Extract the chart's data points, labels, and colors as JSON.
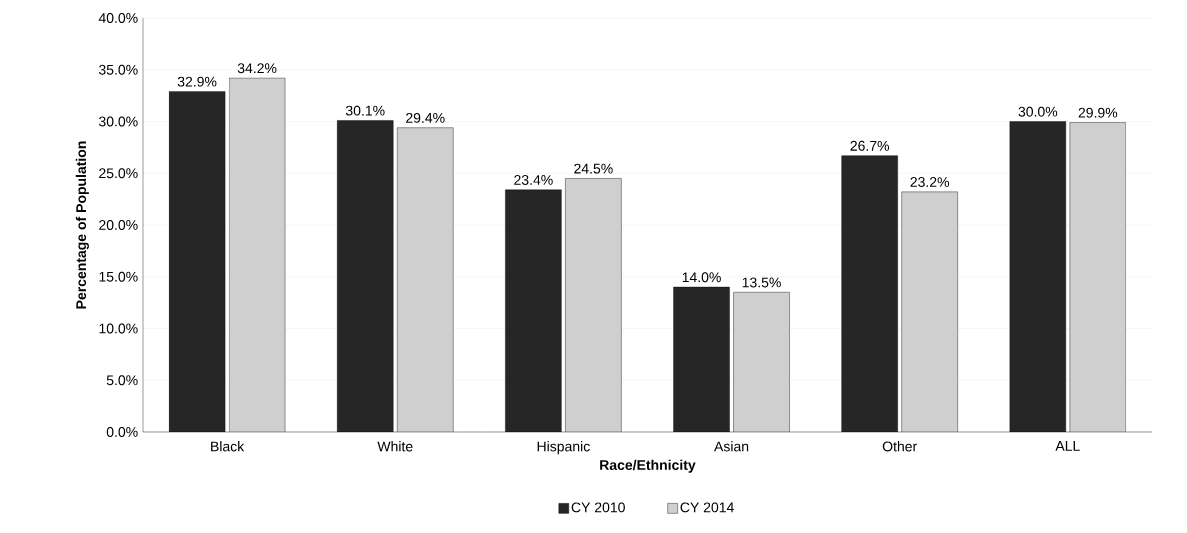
{
  "chart_data": {
    "type": "bar",
    "xlabel": "Race/Ethnicity",
    "ylabel": "Percentage of Population",
    "categories": [
      "Black",
      "White",
      "Hispanic",
      "Asian",
      "Other",
      "ALL"
    ],
    "series": [
      {
        "name": "CY 2010",
        "color": "#262626",
        "values": [
          32.9,
          30.1,
          23.4,
          14.0,
          26.7,
          30.0
        ],
        "value_labels": [
          "32.9%",
          "30.1%",
          "23.4%",
          "14.0%",
          "26.7%",
          "30.0%"
        ]
      },
      {
        "name": "CY 2014",
        "color": "#cfcfcf",
        "values": [
          34.2,
          29.4,
          24.5,
          13.5,
          23.2,
          29.9
        ],
        "value_labels": [
          "34.2%",
          "29.4%",
          "24.5%",
          "13.5%",
          "23.2%",
          "29.9%"
        ]
      }
    ],
    "ylim": [
      0,
      40
    ],
    "yticks": [
      {
        "value": 0,
        "label": "0.0%"
      },
      {
        "value": 5,
        "label": "5.0%"
      },
      {
        "value": 10,
        "label": "10.0%"
      },
      {
        "value": 15,
        "label": "15.0%"
      },
      {
        "value": 20,
        "label": "20.0%"
      },
      {
        "value": 25,
        "label": "25.0%"
      },
      {
        "value": 30,
        "label": "30.0%"
      },
      {
        "value": 35,
        "label": "35.0%"
      },
      {
        "value": 40,
        "label": "40.0%"
      }
    ],
    "grid": "y",
    "legend": "bottom"
  }
}
